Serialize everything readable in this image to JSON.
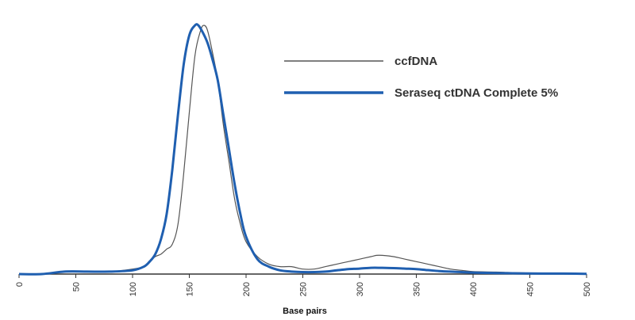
{
  "chart_data": {
    "type": "line",
    "title": "",
    "xlabel": "Base pairs",
    "ylabel": "",
    "xlim": [
      0,
      500
    ],
    "ylim": [
      0,
      1
    ],
    "x_ticks": [
      0,
      50,
      100,
      150,
      200,
      250,
      300,
      350,
      400,
      450,
      500
    ],
    "grid": false,
    "legend_position": "top-right",
    "series": [
      {
        "name": "ccfDNA",
        "color": "#555555",
        "x": [
          0,
          20,
          40,
          60,
          80,
          100,
          110,
          115,
          120,
          125,
          130,
          135,
          140,
          145,
          150,
          155,
          160,
          163,
          166,
          170,
          175,
          180,
          185,
          190,
          195,
          200,
          210,
          220,
          230,
          240,
          250,
          260,
          270,
          280,
          290,
          300,
          310,
          315,
          320,
          330,
          340,
          350,
          360,
          370,
          380,
          390,
          400,
          420,
          440,
          460,
          480,
          500
        ],
        "y": [
          0.0,
          0.0,
          0.01,
          0.01,
          0.01,
          0.02,
          0.03,
          0.05,
          0.07,
          0.08,
          0.1,
          0.12,
          0.2,
          0.4,
          0.65,
          0.88,
          0.98,
          1.0,
          0.98,
          0.9,
          0.78,
          0.6,
          0.45,
          0.3,
          0.2,
          0.13,
          0.07,
          0.04,
          0.03,
          0.03,
          0.02,
          0.02,
          0.03,
          0.04,
          0.05,
          0.06,
          0.07,
          0.075,
          0.075,
          0.07,
          0.06,
          0.05,
          0.04,
          0.03,
          0.02,
          0.015,
          0.01,
          0.008,
          0.005,
          0.003,
          0.002,
          0.002
        ]
      },
      {
        "name": "Seraseq ctDNA Complete 5%",
        "color": "#1f5fb0",
        "x": [
          0,
          20,
          40,
          60,
          80,
          100,
          110,
          115,
          120,
          125,
          130,
          135,
          140,
          145,
          150,
          155,
          158,
          162,
          166,
          170,
          175,
          180,
          185,
          190,
          195,
          200,
          210,
          220,
          230,
          240,
          250,
          260,
          270,
          280,
          290,
          300,
          310,
          320,
          330,
          340,
          350,
          360,
          370,
          380,
          390,
          400,
          420,
          440,
          460,
          480,
          500
        ],
        "y": [
          0.0,
          0.0,
          0.01,
          0.01,
          0.01,
          0.015,
          0.03,
          0.05,
          0.08,
          0.14,
          0.24,
          0.42,
          0.64,
          0.84,
          0.96,
          1.0,
          1.0,
          0.97,
          0.93,
          0.87,
          0.78,
          0.64,
          0.5,
          0.36,
          0.24,
          0.15,
          0.06,
          0.03,
          0.015,
          0.01,
          0.008,
          0.008,
          0.01,
          0.015,
          0.02,
          0.022,
          0.025,
          0.025,
          0.024,
          0.022,
          0.02,
          0.016,
          0.012,
          0.01,
          0.008,
          0.006,
          0.004,
          0.003,
          0.002,
          0.002,
          0.001
        ]
      }
    ]
  }
}
